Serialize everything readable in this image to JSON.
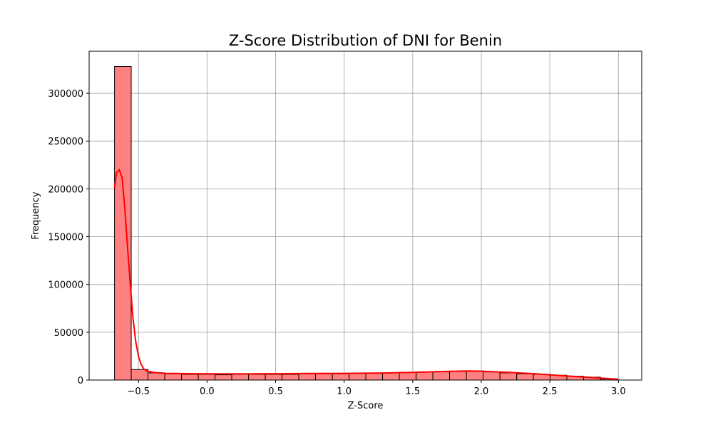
{
  "chart_data": {
    "type": "bar",
    "title": "Z-Score Distribution of DNI for Benin",
    "xlabel": "Z-Score",
    "ylabel": "Frequency",
    "xlim": [
      -0.86,
      3.17
    ],
    "ylim": [
      0,
      344000
    ],
    "xticks": [
      -0.5,
      0.0,
      0.5,
      1.0,
      1.5,
      2.0,
      2.5,
      3.0
    ],
    "xtick_labels": [
      "−0.5",
      "0.0",
      "0.5",
      "1.0",
      "1.5",
      "2.0",
      "2.5",
      "3.0"
    ],
    "yticks": [
      0,
      50000,
      100000,
      150000,
      200000,
      250000,
      300000
    ],
    "ytick_labels": [
      "0",
      "50000",
      "100000",
      "150000",
      "200000",
      "250000",
      "300000"
    ],
    "grid": true,
    "bin_edges": [
      -0.675,
      -0.553,
      -0.431,
      -0.308,
      -0.186,
      -0.064,
      0.058,
      0.18,
      0.303,
      0.425,
      0.547,
      0.669,
      0.791,
      0.914,
      1.036,
      1.158,
      1.28,
      1.402,
      1.525,
      1.647,
      1.769,
      1.891,
      2.013,
      2.136,
      2.258,
      2.38,
      2.502,
      2.624,
      2.747,
      2.869,
      2.991
    ],
    "counts": [
      328000,
      11000,
      7500,
      6500,
      6000,
      6000,
      5500,
      6000,
      6000,
      6000,
      6000,
      6500,
      6500,
      6500,
      7000,
      7000,
      7500,
      8000,
      8500,
      8500,
      9000,
      9500,
      8500,
      7500,
      6500,
      6000,
      5000,
      4000,
      3000,
      1000
    ],
    "kde": {
      "x": [
        -0.675,
        -0.66,
        -0.64,
        -0.62,
        -0.6,
        -0.58,
        -0.56,
        -0.54,
        -0.52,
        -0.5,
        -0.48,
        -0.46,
        -0.44,
        -0.4,
        -0.35,
        -0.3,
        -0.2,
        -0.1,
        0.0,
        0.25,
        0.5,
        0.75,
        1.0,
        1.25,
        1.5,
        1.75,
        1.9,
        2.0,
        2.2,
        2.4,
        2.6,
        2.8,
        3.0
      ],
      "y": [
        201000,
        217000,
        220000,
        212000,
        180000,
        140000,
        100000,
        65000,
        40000,
        25000,
        16000,
        11500,
        9500,
        8200,
        7500,
        7000,
        6800,
        6600,
        6500,
        6400,
        6600,
        6900,
        7000,
        7300,
        8000,
        9000,
        9500,
        9200,
        8000,
        6500,
        4500,
        2700,
        800
      ]
    },
    "colors": {
      "bar_fill": "#ff8080",
      "bar_edge": "#000000",
      "kde_line": "#ff0000",
      "grid": "#b0b0b0"
    }
  }
}
